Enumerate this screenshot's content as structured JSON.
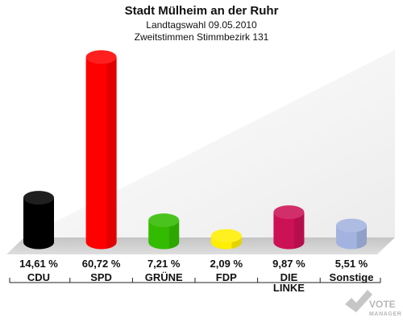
{
  "chart_data": {
    "type": "bar",
    "title": "Stadt Mülheim an der Ruhr",
    "subtitle_line1": "Landtagswahl 09.05.2010",
    "subtitle_line2": "Zweitstimmen Stimmbezirk 131",
    "categories": [
      "CDU",
      "SPD",
      "GRÜNE",
      "FDP",
      "DIE LINKE",
      "Sonstige"
    ],
    "category_lines": [
      [
        "CDU"
      ],
      [
        "SPD"
      ],
      [
        "GRÜNE"
      ],
      [
        "FDP"
      ],
      [
        "DIE",
        "LINKE"
      ],
      [
        "Sonstige"
      ]
    ],
    "values": [
      14.61,
      60.72,
      7.21,
      2.09,
      9.87,
      5.51
    ],
    "value_labels": [
      "14,61 %",
      "60,72 %",
      "7,21 %",
      "2,09 %",
      "9,87 %",
      "5,51 %"
    ],
    "colors": [
      "#000000",
      "#ff0000",
      "#33bb00",
      "#ffee00",
      "#cc1155",
      "#a3b3e0"
    ],
    "ylim": [
      0,
      62
    ]
  },
  "watermark": {
    "line1": "VOTE",
    "line2": "MANAGER"
  }
}
